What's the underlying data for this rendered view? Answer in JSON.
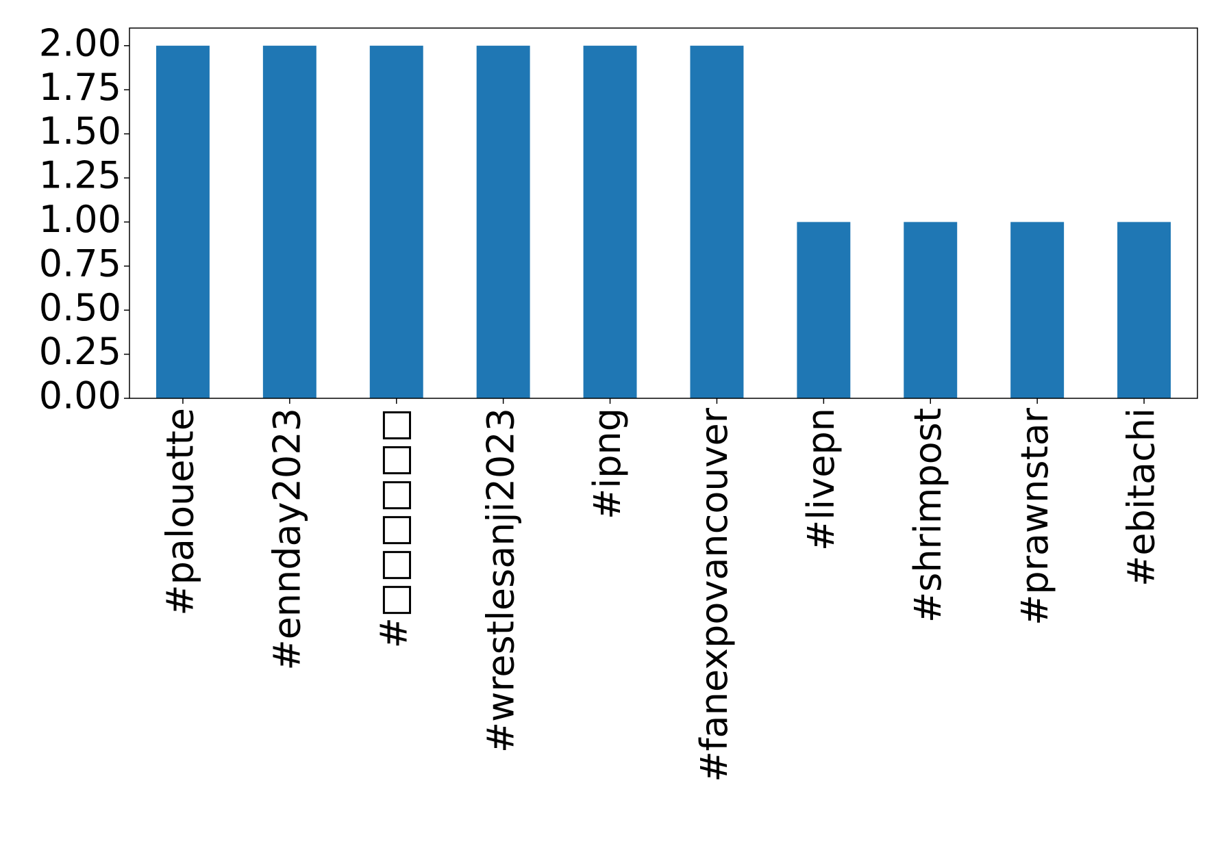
{
  "chart_data": {
    "type": "bar",
    "categories": [
      "#palouette",
      "#ennday2023",
      "#□□□□□□",
      "#wrestlesanji2023",
      "#ipng",
      "#fanexpovancouver",
      "#livepn",
      "#shrimpost",
      "#prawnstar",
      "#ebitachi"
    ],
    "values": [
      2,
      2,
      2,
      2,
      2,
      2,
      1,
      1,
      1,
      1
    ],
    "color": "#1f77b4",
    "ylim": [
      0,
      2.1
    ],
    "yticks": [
      {
        "value": 0,
        "label": "0.00"
      },
      {
        "value": 0.25,
        "label": "0.25"
      },
      {
        "value": 0.5,
        "label": "0.50"
      },
      {
        "value": 0.75,
        "label": "0.75"
      },
      {
        "value": 1,
        "label": "1.00"
      },
      {
        "value": 1.25,
        "label": "1.25"
      },
      {
        "value": 1.5,
        "label": "1.50"
      },
      {
        "value": 1.75,
        "label": "1.75"
      },
      {
        "value": 2,
        "label": "2.00"
      }
    ],
    "grid": false
  }
}
